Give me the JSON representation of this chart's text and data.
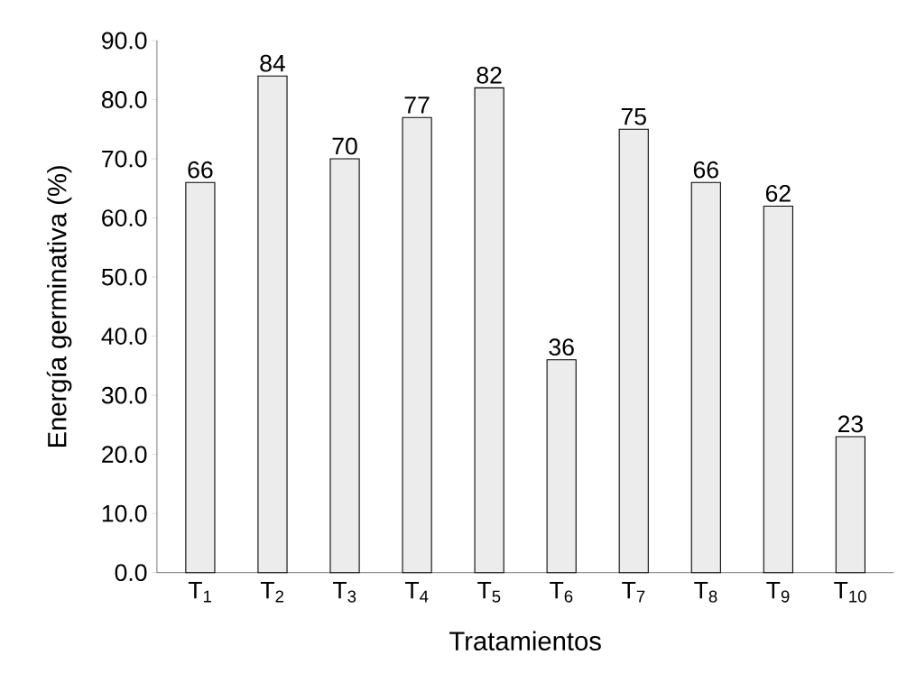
{
  "chart_data": {
    "type": "bar",
    "xlabel": "Tratamientos",
    "ylabel": "Energía germinativa (%)",
    "categories": [
      "T$_{1}$",
      "T$_{2}$",
      "T$_{3}$",
      "T$_{4}$",
      "T$_{5}$",
      "T$_{6}$",
      "T$_{7}$",
      "T$_{8}$",
      "T$_{9}$",
      "T$_{10}$"
    ],
    "values": [
      66,
      84,
      70,
      77,
      82,
      36,
      75,
      66,
      62,
      23
    ],
    "value_labels": [
      "66",
      "84",
      "70",
      "77",
      "82",
      "36",
      "75",
      "66",
      "62",
      "23"
    ],
    "color": "#ececec",
    "ylim": [
      0,
      90
    ],
    "yticks": [
      {
        "value": 0,
        "label": "0.0"
      },
      {
        "value": 10,
        "label": "10.0"
      },
      {
        "value": 20,
        "label": "20.0"
      },
      {
        "value": 30,
        "label": "30.0"
      },
      {
        "value": 40,
        "label": "40.0"
      },
      {
        "value": 50,
        "label": "50.0"
      },
      {
        "value": 60,
        "label": "60.0"
      },
      {
        "value": 70,
        "label": "70.0"
      },
      {
        "value": 80,
        "label": "80.0"
      },
      {
        "value": 90,
        "label": "90.0"
      }
    ],
    "grid": false
  }
}
